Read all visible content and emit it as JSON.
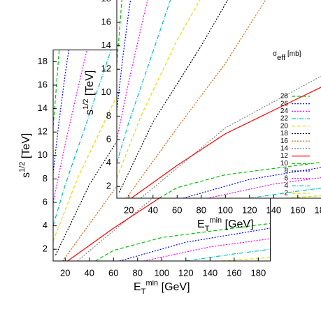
{
  "chart_data": {
    "type": "contour",
    "xlabel": [
      "E",
      "T",
      "min",
      " [GeV]"
    ],
    "ylabel": [
      "s",
      "1/2",
      " [TeV]"
    ],
    "legend_title": [
      "σ",
      "eff",
      " [mb]"
    ],
    "xlim": [
      10,
      190
    ],
    "ylim": [
      1,
      19
    ],
    "xticks": [
      20,
      40,
      60,
      80,
      100,
      120,
      140,
      160,
      180
    ],
    "yticks": [
      2,
      4,
      6,
      8,
      10,
      12,
      14,
      16,
      18
    ],
    "series": [
      {
        "name": "28",
        "color": "#00c000",
        "dash": "dashed",
        "x": [
          10,
          12,
          15
        ],
        "values": [
          12.5,
          15,
          19
        ]
      },
      {
        "name": "26",
        "color": "#0000ff",
        "dash": "dotted",
        "x": [
          10,
          15,
          20,
          23
        ],
        "values": [
          8.5,
          13,
          17,
          19
        ]
      },
      {
        "name": "24",
        "color": "#ff00ff",
        "dash": "dotted",
        "x": [
          10,
          20,
          30,
          38
        ],
        "values": [
          6,
          11,
          15.5,
          19
        ]
      },
      {
        "name": "22",
        "color": "#00c0c0",
        "dash": "dashdot",
        "x": [
          10,
          20,
          40,
          58
        ],
        "values": [
          4,
          7.5,
          13.5,
          19
        ]
      },
      {
        "name": "20",
        "color": "#e0e000",
        "dash": "dashed",
        "x": [
          10,
          30,
          60,
          85
        ],
        "values": [
          2.7,
          8,
          14.5,
          19
        ]
      },
      {
        "name": "18",
        "color": "#000000",
        "dash": "dotted",
        "x": [
          12,
          40,
          80,
          108
        ],
        "values": [
          1.5,
          7.5,
          14,
          19
        ]
      },
      {
        "name": "16",
        "color": "#e06000",
        "dash": "dotted",
        "x": [
          18,
          60,
          100,
          140
        ],
        "values": [
          1,
          7,
          12.5,
          19
        ]
      },
      {
        "name": "14",
        "color": "#808080",
        "dash": "dotted",
        "x": [
          30,
          100,
          190
        ],
        "values": [
          1,
          7,
          12
        ]
      },
      {
        "name": "12",
        "color": "#ff0000",
        "dash": "solid",
        "x": [
          22,
          60,
          100,
          140,
          190
        ],
        "values": [
          1,
          3.8,
          6.5,
          8.5,
          11
        ]
      },
      {
        "name": "10",
        "color": "#00c000",
        "dash": "dashed",
        "x": [
          45,
          60,
          100,
          190
        ],
        "values": [
          1,
          1.9,
          3,
          4.2
        ]
      },
      {
        "name": "8",
        "color": "#0000ff",
        "dash": "dotted",
        "x": [
          65,
          120,
          190
        ],
        "values": [
          1,
          2.6,
          3.8
        ]
      },
      {
        "name": "6",
        "color": "#ff00ff",
        "dash": "dotted",
        "x": [
          85,
          140,
          190
        ],
        "values": [
          1,
          2.2,
          2.9
        ]
      },
      {
        "name": "4",
        "color": "#00c0c0",
        "dash": "dashdot",
        "x": [
          120,
          160,
          190
        ],
        "values": [
          1,
          1.6,
          2
        ]
      },
      {
        "name": "2",
        "color": "#e0e000",
        "dash": "dashed",
        "x": [
          150,
          190
        ],
        "values": [
          1,
          1.3
        ]
      }
    ]
  }
}
